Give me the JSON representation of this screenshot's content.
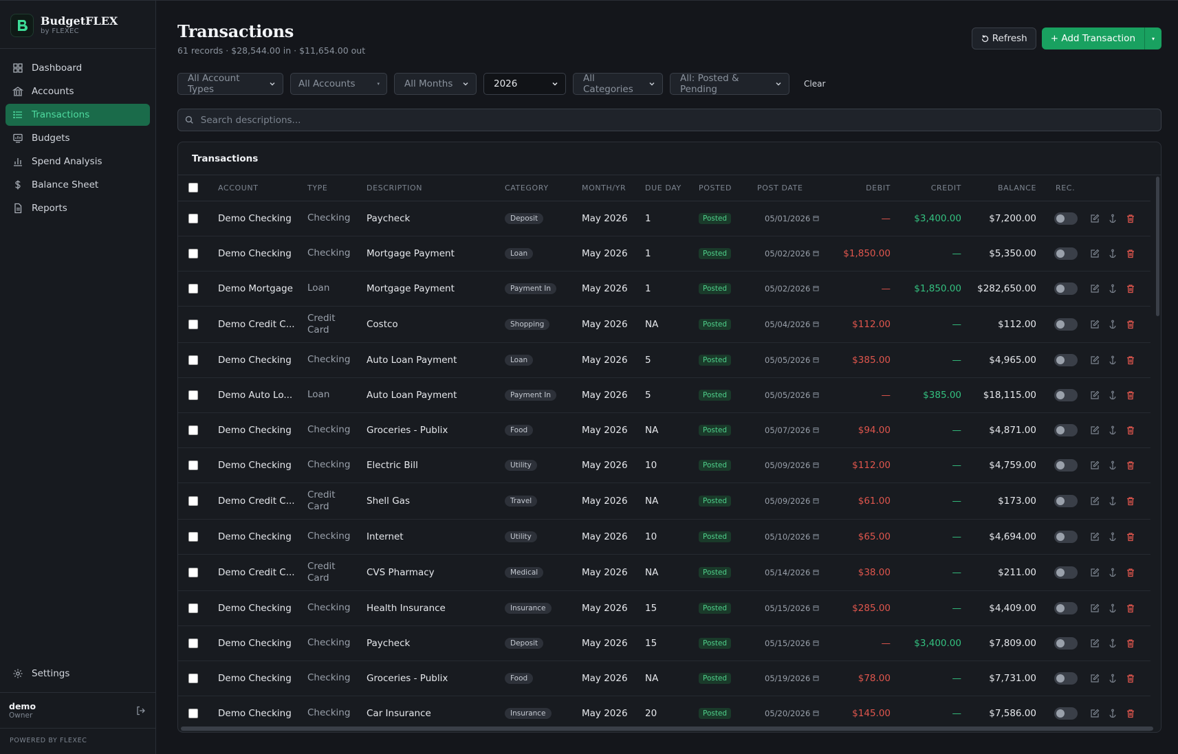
{
  "brand": {
    "name": "BudgetFLEX",
    "sub": "by FLEXEC"
  },
  "nav": [
    {
      "label": "Dashboard",
      "icon": "grid-icon"
    },
    {
      "label": "Accounts",
      "icon": "bank-icon"
    },
    {
      "label": "Transactions",
      "icon": "list-icon"
    },
    {
      "label": "Budgets",
      "icon": "chart-card-icon"
    },
    {
      "label": "Spend Analysis",
      "icon": "bar-chart-icon"
    },
    {
      "label": "Balance Sheet",
      "icon": "dollar-icon"
    },
    {
      "label": "Reports",
      "icon": "document-icon"
    }
  ],
  "settings_label": "Settings",
  "user": {
    "name": "demo",
    "role": "Owner"
  },
  "powered": "POWERED BY FLEXEC",
  "page": {
    "title": "Transactions",
    "subtitle": "61 records · $28,544.00 in · $11,654.00 out",
    "refresh": "Refresh",
    "add": "+ Add Transaction"
  },
  "filters": {
    "account_types": "All Account Types",
    "accounts": "All Accounts",
    "months": "All Months",
    "year": "2026",
    "categories": "All Categories",
    "status": "All: Posted & Pending",
    "clear": "Clear"
  },
  "search": {
    "placeholder": "Search descriptions..."
  },
  "table": {
    "title": "Transactions",
    "headers": {
      "account": "ACCOUNT",
      "type": "TYPE",
      "description": "DESCRIPTION",
      "category": "CATEGORY",
      "month": "MONTH/YR",
      "due": "DUE DAY",
      "posted": "POSTED",
      "post_date": "POST DATE",
      "debit": "DEBIT",
      "credit": "CREDIT",
      "balance": "BALANCE",
      "rec": "REC."
    },
    "rows": [
      {
        "account": "Demo Checking",
        "type": "Checking",
        "description": "Paycheck",
        "category": "Deposit",
        "month": "May 2026",
        "due": "1",
        "posted": "Posted",
        "date": "05/01/2026",
        "debit": "—",
        "credit": "$3,400.00",
        "balance": "$7,200.00"
      },
      {
        "account": "Demo Checking",
        "type": "Checking",
        "description": "Mortgage Payment",
        "category": "Loan",
        "month": "May 2026",
        "due": "1",
        "posted": "Posted",
        "date": "05/02/2026",
        "debit": "$1,850.00",
        "credit": "—",
        "balance": "$5,350.00"
      },
      {
        "account": "Demo Mortgage",
        "type": "Loan",
        "description": "Mortgage Payment",
        "category": "Payment In",
        "month": "May 2026",
        "due": "1",
        "posted": "Posted",
        "date": "05/02/2026",
        "debit": "—",
        "credit": "$1,850.00",
        "balance": "$282,650.00"
      },
      {
        "account": "Demo Credit C...",
        "type": "Credit Card",
        "description": "Costco",
        "category": "Shopping",
        "month": "May 2026",
        "due": "NA",
        "posted": "Posted",
        "date": "05/04/2026",
        "debit": "$112.00",
        "credit": "—",
        "balance": "$112.00"
      },
      {
        "account": "Demo Checking",
        "type": "Checking",
        "description": "Auto Loan Payment",
        "category": "Loan",
        "month": "May 2026",
        "due": "5",
        "posted": "Posted",
        "date": "05/05/2026",
        "debit": "$385.00",
        "credit": "—",
        "balance": "$4,965.00"
      },
      {
        "account": "Demo Auto Lo...",
        "type": "Loan",
        "description": "Auto Loan Payment",
        "category": "Payment In",
        "month": "May 2026",
        "due": "5",
        "posted": "Posted",
        "date": "05/05/2026",
        "debit": "—",
        "credit": "$385.00",
        "balance": "$18,115.00"
      },
      {
        "account": "Demo Checking",
        "type": "Checking",
        "description": "Groceries - Publix",
        "category": "Food",
        "month": "May 2026",
        "due": "NA",
        "posted": "Posted",
        "date": "05/07/2026",
        "debit": "$94.00",
        "credit": "—",
        "balance": "$4,871.00"
      },
      {
        "account": "Demo Checking",
        "type": "Checking",
        "description": "Electric Bill",
        "category": "Utility",
        "month": "May 2026",
        "due": "10",
        "posted": "Posted",
        "date": "05/09/2026",
        "debit": "$112.00",
        "credit": "—",
        "balance": "$4,759.00"
      },
      {
        "account": "Demo Credit C...",
        "type": "Credit Card",
        "description": "Shell Gas",
        "category": "Travel",
        "month": "May 2026",
        "due": "NA",
        "posted": "Posted",
        "date": "05/09/2026",
        "debit": "$61.00",
        "credit": "—",
        "balance": "$173.00"
      },
      {
        "account": "Demo Checking",
        "type": "Checking",
        "description": "Internet",
        "category": "Utility",
        "month": "May 2026",
        "due": "10",
        "posted": "Posted",
        "date": "05/10/2026",
        "debit": "$65.00",
        "credit": "—",
        "balance": "$4,694.00"
      },
      {
        "account": "Demo Credit C...",
        "type": "Credit Card",
        "description": "CVS Pharmacy",
        "category": "Medical",
        "month": "May 2026",
        "due": "NA",
        "posted": "Posted",
        "date": "05/14/2026",
        "debit": "$38.00",
        "credit": "—",
        "balance": "$211.00"
      },
      {
        "account": "Demo Checking",
        "type": "Checking",
        "description": "Health Insurance",
        "category": "Insurance",
        "month": "May 2026",
        "due": "15",
        "posted": "Posted",
        "date": "05/15/2026",
        "debit": "$285.00",
        "credit": "—",
        "balance": "$4,409.00"
      },
      {
        "account": "Demo Checking",
        "type": "Checking",
        "description": "Paycheck",
        "category": "Deposit",
        "month": "May 2026",
        "due": "15",
        "posted": "Posted",
        "date": "05/15/2026",
        "debit": "—",
        "credit": "$3,400.00",
        "balance": "$7,809.00"
      },
      {
        "account": "Demo Checking",
        "type": "Checking",
        "description": "Groceries - Publix",
        "category": "Food",
        "month": "May 2026",
        "due": "NA",
        "posted": "Posted",
        "date": "05/19/2026",
        "debit": "$78.00",
        "credit": "—",
        "balance": "$7,731.00"
      },
      {
        "account": "Demo Checking",
        "type": "Checking",
        "description": "Car Insurance",
        "category": "Insurance",
        "month": "May 2026",
        "due": "20",
        "posted": "Posted",
        "date": "05/20/2026",
        "debit": "$145.00",
        "credit": "—",
        "balance": "$7,586.00"
      }
    ]
  }
}
